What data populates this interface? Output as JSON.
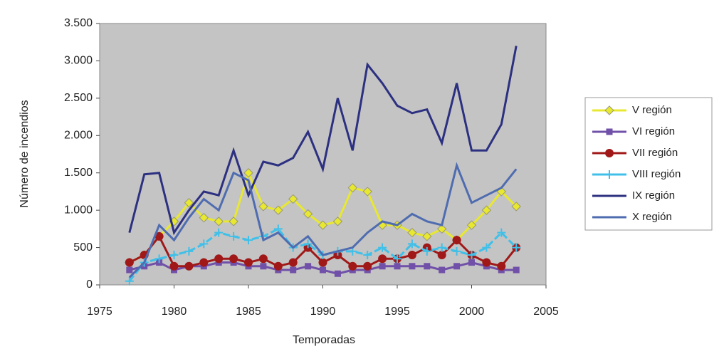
{
  "chart_data": {
    "type": "line",
    "x_label": "Temporadas",
    "y_label": "Número de incendios",
    "x": [
      1977,
      1978,
      1979,
      1980,
      1981,
      1982,
      1983,
      1984,
      1985,
      1986,
      1987,
      1988,
      1989,
      1990,
      1991,
      1992,
      1993,
      1994,
      1995,
      1996,
      1997,
      1998,
      1999,
      2000,
      2001,
      2002,
      2003
    ],
    "series": [
      {
        "name": "V región",
        "color": "#e8e830",
        "marker": "diamond",
        "values": [
          300,
          400,
          650,
          850,
          1100,
          900,
          850,
          850,
          1500,
          1050,
          1000,
          1150,
          950,
          800,
          850,
          1300,
          1250,
          800,
          800,
          700,
          650,
          750,
          600,
          800,
          1000,
          1250,
          1050
        ]
      },
      {
        "name": "VI región",
        "color": "#7050a8",
        "marker": "square",
        "values": [
          200,
          250,
          300,
          200,
          250,
          250,
          300,
          300,
          250,
          250,
          200,
          200,
          250,
          200,
          150,
          200,
          200,
          250,
          250,
          250,
          250,
          200,
          250,
          300,
          250,
          200,
          200
        ]
      },
      {
        "name": "VII región",
        "color": "#a01818",
        "marker": "circle",
        "values": [
          300,
          400,
          650,
          250,
          250,
          300,
          350,
          350,
          300,
          350,
          250,
          300,
          500,
          300,
          400,
          250,
          250,
          350,
          350,
          400,
          500,
          400,
          600,
          400,
          300,
          250,
          500
        ]
      },
      {
        "name": "VIII región",
        "color": "#40c0e8",
        "marker": "cross",
        "values": [
          50,
          300,
          350,
          400,
          450,
          550,
          700,
          650,
          600,
          650,
          750,
          500,
          550,
          400,
          450,
          450,
          400,
          500,
          350,
          550,
          450,
          500,
          450,
          400,
          500,
          700,
          500
        ]
      },
      {
        "name": "IX región",
        "color": "#2c3080",
        "marker": "none",
        "values": [
          700,
          1480,
          1500,
          700,
          1000,
          1250,
          1200,
          1800,
          1200,
          1650,
          1600,
          1700,
          2050,
          1550,
          2500,
          1800,
          2950,
          2700,
          2400,
          2300,
          2350,
          1900,
          2700,
          1800,
          1800,
          2150,
          3200
        ]
      },
      {
        "name": "X región",
        "color": "#4f6cb0",
        "marker": "none",
        "values": [
          100,
          300,
          800,
          600,
          900,
          1150,
          1000,
          1500,
          1400,
          600,
          700,
          500,
          650,
          400,
          450,
          500,
          700,
          850,
          800,
          950,
          850,
          800,
          1600,
          1100,
          1200,
          1300,
          1550
        ]
      }
    ],
    "xlim": [
      1975,
      2005
    ],
    "xticks": [
      1975,
      1980,
      1985,
      1990,
      1995,
      2000,
      2005
    ],
    "ylim": [
      0,
      3500
    ],
    "yticks": [
      0,
      500,
      {
        "value": 1000,
        "label": "1.000"
      },
      {
        "value": 1500,
        "label": "1.500"
      },
      {
        "value": 2000,
        "label": "2.000"
      },
      {
        "value": 2500,
        "label": "2.500"
      },
      {
        "value": 3000,
        "label": "3.000"
      },
      {
        "value": 3500,
        "label": "3.500"
      }
    ],
    "plot_background": "#c4c4c4",
    "legend": "right"
  }
}
